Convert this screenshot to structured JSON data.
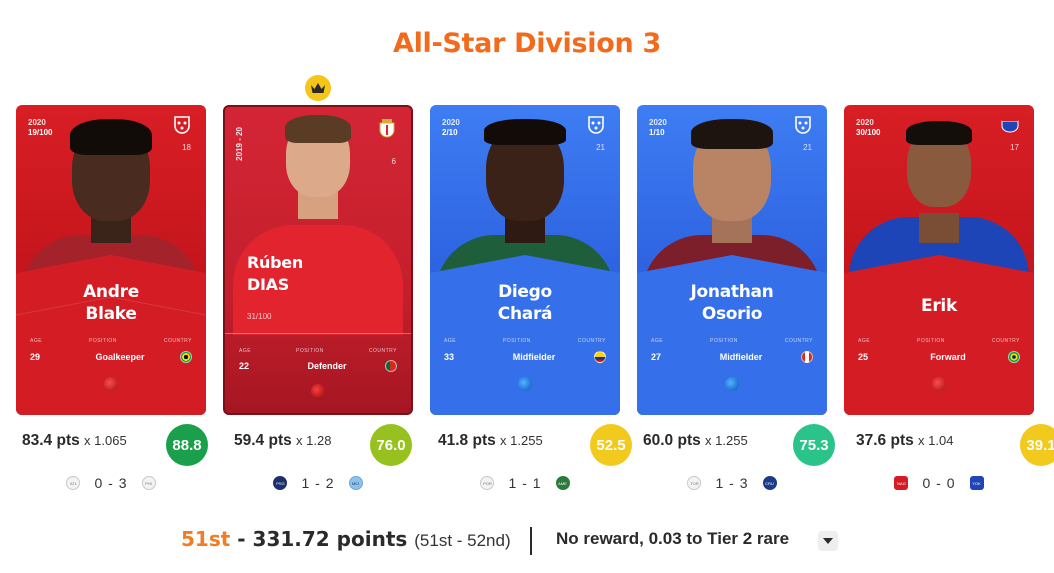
{
  "title": "All-Star Division 3",
  "cards": [
    {
      "theme": "red",
      "year": "2020",
      "serial": "19/100",
      "club_number": "18",
      "first_name": "Andre",
      "last_name": "Blake",
      "age_label": "AGE",
      "position_label": "POSITION",
      "country_label": "COUNTRY",
      "age": "29",
      "position": "Goalkeeper",
      "pts": "83.4 pts",
      "multiplier": "x 1.065",
      "score": "88.8",
      "score_color": "#1aa04a",
      "home_team": "ATL",
      "match_score": "0 - 3",
      "away_team": "PHI"
    },
    {
      "theme": "rare",
      "season": "2019 - 20",
      "serial": "31/100",
      "club_number": "6",
      "first_name": "Rúben",
      "last_name": "DIAS",
      "age_label": "AGE",
      "position_label": "POSITION",
      "country_label": "COUNTRY",
      "age": "22",
      "position": "Defender",
      "pts": "59.4 pts",
      "multiplier": "x 1.28",
      "score": "76.0",
      "score_color": "#96c11f",
      "home_team": "PSG",
      "match_score": "1 - 2",
      "away_team": "MCI"
    },
    {
      "theme": "blue",
      "year": "2020",
      "serial": "2/10",
      "club_number": "21",
      "first_name": "Diego",
      "last_name": "Chará",
      "age_label": "AGE",
      "position_label": "POSITION",
      "country_label": "COUNTRY",
      "age": "33",
      "position": "Midfielder",
      "pts": "41.8 pts",
      "multiplier": "x 1.255",
      "score": "52.5",
      "score_color": "#f2c91d",
      "home_team": "POR",
      "match_score": "1 - 1",
      "away_team": "AME"
    },
    {
      "theme": "blue",
      "year": "2020",
      "serial": "1/10",
      "club_number": "21",
      "first_name": "Jonathan",
      "last_name": "Osorio",
      "age_label": "AGE",
      "position_label": "POSITION",
      "country_label": "COUNTRY",
      "age": "27",
      "position": "Midfielder",
      "pts": "60.0 pts",
      "multiplier": "x 1.255",
      "score": "75.3",
      "score_color": "#2ac48a",
      "home_team": "TOR",
      "match_score": "1 - 3",
      "away_team": "CRU"
    },
    {
      "theme": "red",
      "year": "2020",
      "serial": "30/100",
      "club_number": "17",
      "first_name": "",
      "last_name": "Erik",
      "age_label": "AGE",
      "position_label": "POSITION",
      "country_label": "COUNTRY",
      "age": "25",
      "position": "Forward",
      "pts": "37.6 pts",
      "multiplier": "x 1.04",
      "score": "39.1",
      "score_color": "#f2c91d",
      "home_team": "NAG",
      "match_score": "0 - 0",
      "away_team": "YOK"
    }
  ],
  "crown_icon": "crown-icon",
  "footer": {
    "place": "51st",
    "points": " - 331.72 points",
    "range": "(51st - 52nd)",
    "reward": "No reward, 0.03 to Tier 2 rare"
  }
}
